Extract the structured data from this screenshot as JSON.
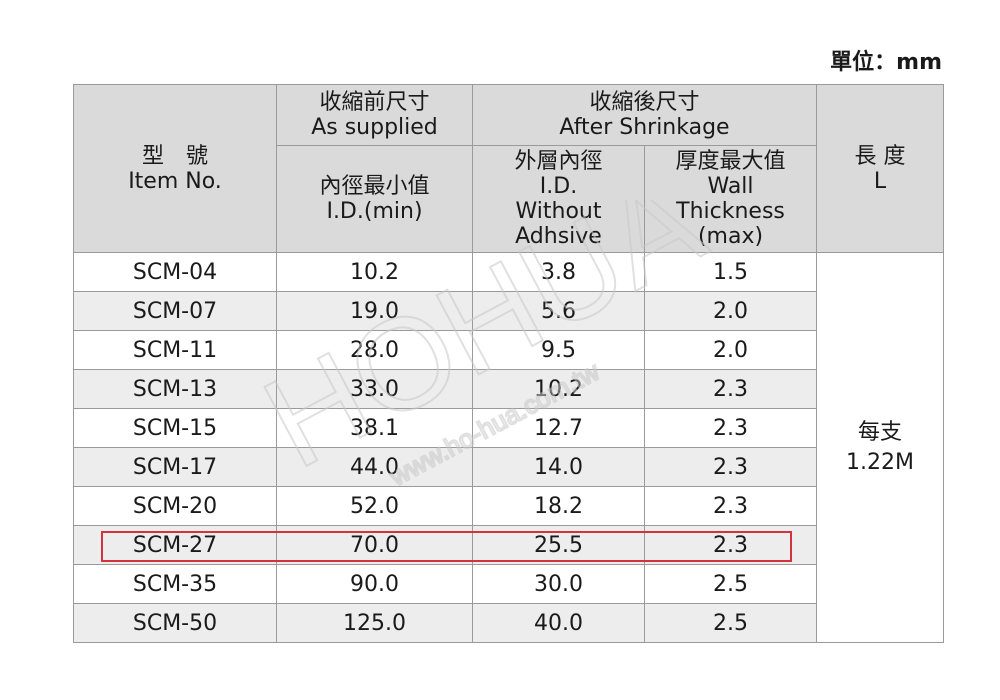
{
  "unit_label": "單位：mm",
  "watermark": {
    "logo": "HOHUA",
    "url": "www.ho-hua.com.tw"
  },
  "header": {
    "item": {
      "zh": "型　號",
      "en": "Item No."
    },
    "as_supplied": {
      "zh": "收縮前尺寸",
      "en": "As supplied"
    },
    "after_shrinkage": {
      "zh": "收縮後尺寸",
      "en": "After Shrinkage"
    },
    "length": {
      "zh": "長 度",
      "en": "L"
    },
    "id_min": {
      "zh": "內徑最小值",
      "en": "I.D.(min)"
    },
    "id_without": {
      "zh": "外層內徑",
      "en1": "I.D.",
      "en2": "Without",
      "en3": "Adhsive"
    },
    "wall": {
      "zh": "厚度最大值",
      "en1": "Wall",
      "en2": "Thickness",
      "en3": "(max)"
    }
  },
  "rows": [
    {
      "item": "SCM-04",
      "id_min": "10.2",
      "id_without": "3.8",
      "wall": "1.5"
    },
    {
      "item": "SCM-07",
      "id_min": "19.0",
      "id_without": "5.6",
      "wall": "2.0"
    },
    {
      "item": "SCM-11",
      "id_min": "28.0",
      "id_without": "9.5",
      "wall": "2.0"
    },
    {
      "item": "SCM-13",
      "id_min": "33.0",
      "id_without": "10.2",
      "wall": "2.3"
    },
    {
      "item": "SCM-15",
      "id_min": "38.1",
      "id_without": "12.7",
      "wall": "2.3"
    },
    {
      "item": "SCM-17",
      "id_min": "44.0",
      "id_without": "14.0",
      "wall": "2.3"
    },
    {
      "item": "SCM-20",
      "id_min": "52.0",
      "id_without": "18.2",
      "wall": "2.3"
    },
    {
      "item": "SCM-27",
      "id_min": "70.0",
      "id_without": "25.5",
      "wall": "2.3"
    },
    {
      "item": "SCM-35",
      "id_min": "90.0",
      "id_without": "30.0",
      "wall": "2.5"
    },
    {
      "item": "SCM-50",
      "id_min": "125.0",
      "id_without": "40.0",
      "wall": "2.5"
    }
  ],
  "length_value": {
    "zh": "每支",
    "value": "1.22M"
  },
  "highlighted_item": "SCM-27",
  "colors": {
    "header_bg": "#dadada",
    "stripe_bg": "#ededed",
    "highlight_border": "#d4323c",
    "border": "#9a9a9a"
  }
}
